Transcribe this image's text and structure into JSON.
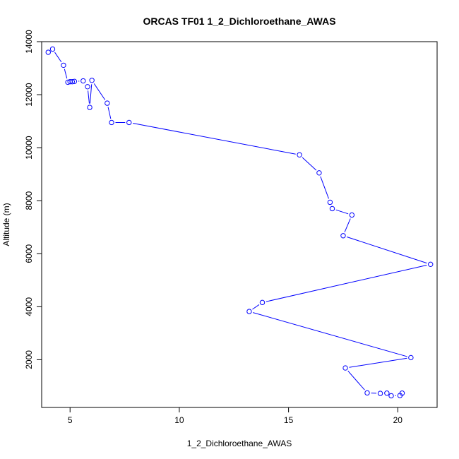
{
  "chart_data": {
    "type": "line",
    "title": "ORCAS TF01 1_2_Dichloroethane_AWAS",
    "xlabel": "1_2_Dichloroethane_AWAS",
    "ylabel": "Altitude (m)",
    "xlim": [
      3.7,
      21.8
    ],
    "ylim": [
      200,
      14000
    ],
    "xticks": [
      5,
      10,
      15,
      20
    ],
    "yticks": [
      2000,
      4000,
      6000,
      8000,
      10000,
      12000,
      14000
    ],
    "grid": false,
    "colors": {
      "series": "#0000ff",
      "axis": "#000000"
    },
    "series": [
      {
        "x": [
          4.0,
          4.2,
          4.7,
          4.9,
          5.0,
          5.1,
          5.2,
          5.6,
          5.8,
          5.9,
          6.0,
          6.7,
          6.9,
          7.7,
          15.5,
          16.4,
          16.9,
          17.0,
          17.9,
          17.5,
          21.5,
          13.8,
          13.2,
          20.6,
          17.6,
          18.6,
          19.2,
          19.5,
          19.7,
          20.1,
          20.2
        ],
        "y": [
          13600,
          13720,
          13110,
          12470,
          12490,
          12490,
          12500,
          12520,
          12300,
          11520,
          12540,
          11680,
          10950,
          10950,
          9730,
          9050,
          7940,
          7700,
          7460,
          6680,
          5600,
          4160,
          3820,
          2080,
          1690,
          750,
          730,
          740,
          640,
          650,
          740
        ]
      }
    ]
  }
}
